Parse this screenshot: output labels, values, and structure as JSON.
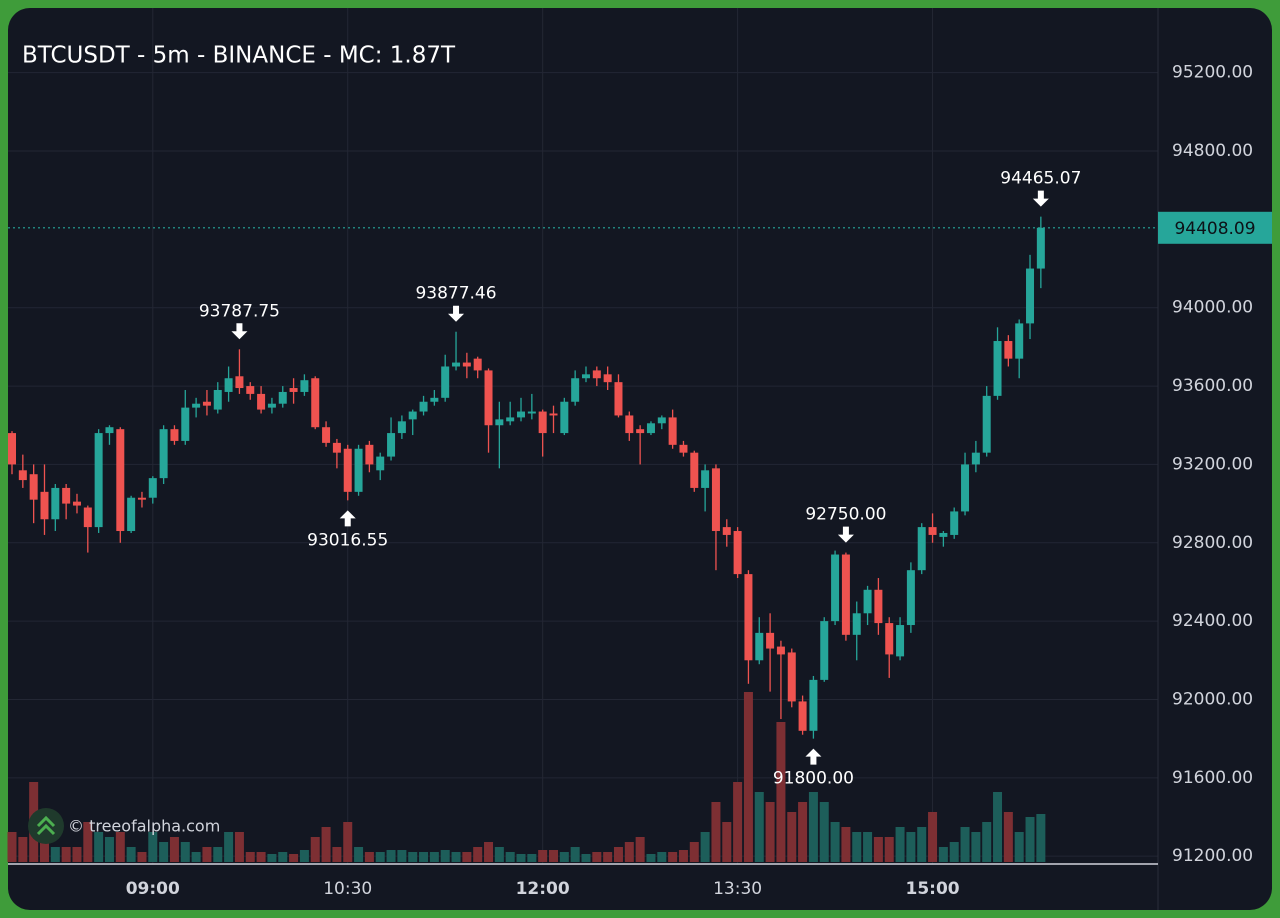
{
  "chart_data": {
    "type": "candlestick",
    "title": "BTCUSDT - 5m - BINANCE - MC: 1.87T",
    "watermark": "© treeofalpha.com",
    "categories": [
      null,
      null,
      null,
      null,
      null,
      null,
      null,
      null,
      null,
      null,
      null,
      null,
      null,
      "09:00",
      null,
      null,
      null,
      null,
      null,
      null,
      null,
      null,
      null,
      null,
      null,
      null,
      null,
      null,
      null,
      null,
      null,
      "10:30",
      null,
      null,
      null,
      null,
      null,
      null,
      null,
      null,
      null,
      null,
      null,
      null,
      null,
      null,
      null,
      null,
      null,
      "12:00",
      null,
      null,
      null,
      null,
      null,
      null,
      null,
      null,
      null,
      null,
      null,
      null,
      null,
      null,
      null,
      null,
      null,
      "13:30",
      null,
      null,
      null,
      null,
      null,
      null,
      null,
      null,
      null,
      null,
      null,
      null,
      null,
      null,
      null,
      null,
      null,
      "15:00",
      null,
      null,
      null,
      null,
      null,
      null,
      null,
      null,
      null,
      null
    ],
    "open": [
      93360,
      93170,
      93150,
      93060,
      92920,
      93080,
      93010,
      92980,
      92880,
      93360,
      93380,
      92860,
      93030,
      93030,
      93130,
      93380,
      93320,
      93490,
      93520,
      93480,
      93570,
      93650,
      93600,
      93560,
      93490,
      93510,
      93590,
      93570,
      93640,
      93390,
      93310,
      93280,
      93060,
      93300,
      93170,
      93240,
      93360,
      93430,
      93470,
      93520,
      93540,
      93700,
      93720,
      93740,
      93680,
      93400,
      93420,
      93440,
      93460,
      93470,
      93460,
      93360,
      93520,
      93640,
      93680,
      93660,
      93620,
      93450,
      93380,
      93360,
      93410,
      93440,
      93300,
      93260,
      93080,
      93180,
      92880,
      92860,
      92640,
      92200,
      92340,
      92270,
      92240,
      91990,
      91840,
      92100,
      92400,
      92740,
      92330,
      92440,
      92560,
      92390,
      92220,
      92380,
      92660,
      92880,
      92830,
      92840,
      92960,
      93200,
      93260,
      93550,
      93830,
      93740,
      93920,
      94200
    ],
    "high": [
      93370,
      93250,
      93200,
      93200,
      93100,
      93100,
      93050,
      92990,
      93380,
      93400,
      93390,
      93040,
      93060,
      93140,
      93400,
      93400,
      93580,
      93540,
      93580,
      93620,
      93700,
      93787.75,
      93620,
      93600,
      93540,
      93600,
      93640,
      93660,
      93650,
      93420,
      93330,
      93300,
      93300,
      93320,
      93260,
      93440,
      93450,
      93480,
      93550,
      93580,
      93760,
      93877.46,
      93770,
      93750,
      93690,
      93520,
      93520,
      93540,
      93560,
      93480,
      93500,
      93540,
      93680,
      93700,
      93700,
      93700,
      93660,
      93470,
      93400,
      93420,
      93450,
      93480,
      93320,
      93270,
      93200,
      93200,
      92920,
      92880,
      92660,
      92420,
      92440,
      92300,
      92260,
      92020,
      92120,
      92420,
      92760,
      92750,
      92500,
      92580,
      92620,
      92420,
      92420,
      92700,
      92900,
      92950,
      92860,
      92980,
      93260,
      93320,
      93600,
      93900,
      93860,
      93940,
      94270,
      94465.07
    ],
    "low": [
      93150,
      93080,
      92900,
      92840,
      92860,
      92920,
      92950,
      92750,
      92850,
      93300,
      92800,
      92850,
      92980,
      93000,
      93100,
      93300,
      93300,
      93440,
      93450,
      93460,
      93520,
      93560,
      93530,
      93460,
      93460,
      93490,
      93510,
      93550,
      93380,
      93290,
      93180,
      93016.55,
      93040,
      93160,
      93120,
      93220,
      93330,
      93350,
      93450,
      93500,
      93520,
      93680,
      93640,
      93640,
      93260,
      93180,
      93400,
      93420,
      93430,
      93240,
      93360,
      93350,
      93500,
      93620,
      93600,
      93580,
      93440,
      93320,
      93200,
      93350,
      93380,
      93280,
      93240,
      93060,
      92960,
      92660,
      92780,
      92620,
      92080,
      92180,
      92040,
      91900,
      91960,
      91820,
      91800,
      92090,
      92380,
      92300,
      92200,
      92380,
      92330,
      92110,
      92200,
      92340,
      92640,
      92800,
      92780,
      92820,
      92940,
      93160,
      93240,
      93530,
      93700,
      93640,
      93840,
      94100
    ],
    "close": [
      93200,
      93120,
      93020,
      92920,
      93080,
      93000,
      92990,
      92880,
      93360,
      93390,
      92860,
      93030,
      93020,
      93130,
      93380,
      93320,
      93490,
      93510,
      93500,
      93580,
      93640,
      93590,
      93560,
      93480,
      93510,
      93570,
      93570,
      93630,
      93390,
      93310,
      93260,
      93060,
      93280,
      93200,
      93240,
      93360,
      93420,
      93470,
      93520,
      93540,
      93700,
      93720,
      93700,
      93680,
      93400,
      93430,
      93440,
      93470,
      93470,
      93360,
      93450,
      93520,
      93640,
      93660,
      93640,
      93620,
      93450,
      93360,
      93360,
      93410,
      93440,
      93300,
      93260,
      93080,
      93170,
      92860,
      92840,
      92640,
      92200,
      92340,
      92260,
      92230,
      91990,
      91840,
      92100,
      92400,
      92740,
      92330,
      92440,
      92560,
      92390,
      92230,
      92380,
      92660,
      92880,
      92840,
      92850,
      92960,
      93200,
      93260,
      93550,
      93830,
      93740,
      93920,
      94200,
      94408.09
    ],
    "volume": [
      30,
      25,
      80,
      20,
      15,
      15,
      15,
      40,
      30,
      25,
      30,
      15,
      10,
      30,
      20,
      25,
      20,
      10,
      15,
      15,
      30,
      30,
      10,
      10,
      8,
      10,
      8,
      12,
      25,
      35,
      15,
      40,
      15,
      10,
      10,
      12,
      12,
      10,
      10,
      10,
      12,
      10,
      10,
      15,
      20,
      15,
      10,
      8,
      8,
      12,
      12,
      10,
      15,
      8,
      10,
      10,
      15,
      20,
      25,
      8,
      10,
      10,
      12,
      20,
      30,
      60,
      40,
      80,
      170,
      70,
      60,
      140,
      50,
      60,
      70,
      60,
      40,
      35,
      30,
      30,
      25,
      25,
      35,
      30,
      35,
      50,
      15,
      20,
      35,
      30,
      40,
      70,
      50,
      30,
      45,
      48
    ],
    "up_color": "#26a69a",
    "down_color": "#ef5350",
    "volume_up_color": "#1d5e5a",
    "volume_down_color": "#7d2f33",
    "ylim": [
      91160,
      95520
    ],
    "yticks": [
      {
        "value": 91200,
        "label": "91200.00"
      },
      {
        "value": 91600,
        "label": "91600.00"
      },
      {
        "value": 92000,
        "label": "92000.00"
      },
      {
        "value": 92400,
        "label": "92400.00"
      },
      {
        "value": 92800,
        "label": "92800.00"
      },
      {
        "value": 93200,
        "label": "93200.00"
      },
      {
        "value": 93600,
        "label": "93600.00"
      },
      {
        "value": 94000,
        "label": "94000.00"
      },
      {
        "value": 94800,
        "label": "94800.00"
      },
      {
        "value": 95200,
        "label": "95200.00"
      }
    ],
    "annotations": [
      {
        "value": 92750,
        "label": "92750.00"
      },
      {
        "value": 93787.75,
        "label": "93787.75"
      },
      {
        "value": 93016.55,
        "label": "93016.55"
      },
      {
        "value": 93877.46,
        "label": "93877.46"
      },
      {
        "value": 91800,
        "label": "91800.00"
      },
      {
        "value": 94465.07,
        "label": "94465.07"
      }
    ],
    "last_price": 94408.09,
    "grid": true
  }
}
